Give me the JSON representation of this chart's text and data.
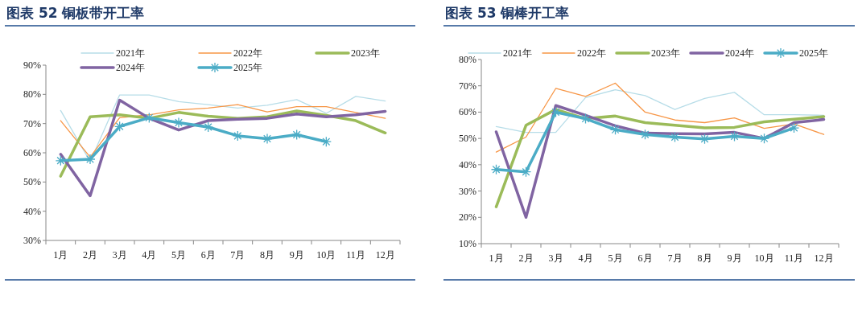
{
  "chart_data": [
    {
      "type": "line",
      "title": "图表 52   铜板带开工率",
      "categories": [
        "1月",
        "2月",
        "3月",
        "4月",
        "5月",
        "6月",
        "7月",
        "8月",
        "9月",
        "10月",
        "11月",
        "12月"
      ],
      "series": [
        {
          "name": "2021年",
          "color": "#b7dde8",
          "values": [
            74.5,
            57,
            79.8,
            79.8,
            77.5,
            76.5,
            75.3,
            76.3,
            78.2,
            73.5,
            79.3,
            77.7
          ]
        },
        {
          "name": "2022年",
          "color": "#f79646",
          "values": [
            71,
            58.5,
            72,
            73,
            74.7,
            75.3,
            76.5,
            74,
            75.8,
            75.8,
            73.8,
            71.8
          ]
        },
        {
          "name": "2023年",
          "color": "#9bbb59",
          "values": [
            52,
            72.3,
            73,
            71.8,
            73.8,
            72.5,
            71.8,
            72.3,
            74.3,
            72.8,
            71,
            66.8
          ]
        },
        {
          "name": "2024年",
          "color": "#8064a2",
          "values": [
            59.5,
            45.3,
            78,
            71.8,
            67.8,
            71,
            71.5,
            71.8,
            73.3,
            72.3,
            73,
            74.2
          ]
        },
        {
          "name": "2025年",
          "color": "#4bacc6",
          "marker": "cross",
          "values": [
            57.3,
            57.8,
            69,
            72,
            70.3,
            68.8,
            65.8,
            64.8,
            66.2,
            63.8,
            null,
            null
          ]
        }
      ],
      "ylim": [
        30,
        90
      ],
      "yticks": [
        {
          "value": 30,
          "label": "30%"
        },
        {
          "value": 40,
          "label": "40%"
        },
        {
          "value": 50,
          "label": "50%"
        },
        {
          "value": 60,
          "label": "60%"
        },
        {
          "value": 70,
          "label": "70%"
        },
        {
          "value": 80,
          "label": "80%"
        },
        {
          "value": 90,
          "label": "90%"
        }
      ],
      "grid": false,
      "legend": "top"
    },
    {
      "type": "line",
      "title": "图表 53   铜棒开工率",
      "categories": [
        "1月",
        "2月",
        "3月",
        "4月",
        "5月",
        "6月",
        "7月",
        "8月",
        "9月",
        "10月",
        "11月",
        "12月"
      ],
      "series": [
        {
          "name": "2021年",
          "color": "#b7dde8",
          "values": [
            54.5,
            52.3,
            52.3,
            65.5,
            68.5,
            66.3,
            61,
            65.2,
            67.5,
            59,
            59,
            58.8
          ]
        },
        {
          "name": "2022年",
          "color": "#f79646",
          "values": [
            44.8,
            50.5,
            69,
            66,
            71,
            60,
            57,
            56,
            57.8,
            53.8,
            55.5,
            51.5
          ]
        },
        {
          "name": "2023年",
          "color": "#9bbb59",
          "values": [
            24,
            55,
            61,
            57.5,
            58.5,
            56,
            55,
            54,
            54.2,
            56.3,
            57.3,
            58.3
          ]
        },
        {
          "name": "2024年",
          "color": "#8064a2",
          "values": [
            52.5,
            20,
            62.5,
            58.8,
            54.8,
            52,
            51.8,
            51.7,
            52.3,
            50,
            56,
            57.2
          ]
        },
        {
          "name": "2025年",
          "color": "#4bacc6",
          "marker": "cross",
          "values": [
            38.2,
            37.3,
            60,
            57.5,
            53.3,
            51.5,
            50.5,
            49.8,
            50.8,
            50,
            54,
            null
          ]
        }
      ],
      "ylim": [
        10,
        80
      ],
      "yticks": [
        {
          "value": 10,
          "label": "10%"
        },
        {
          "value": 20,
          "label": "20%"
        },
        {
          "value": 30,
          "label": "30%"
        },
        {
          "value": 40,
          "label": "40%"
        },
        {
          "value": 50,
          "label": "50%"
        },
        {
          "value": 60,
          "label": "60%"
        },
        {
          "value": 70,
          "label": "70%"
        },
        {
          "value": 80,
          "label": "80%"
        }
      ],
      "grid": false,
      "legend": "top"
    }
  ]
}
